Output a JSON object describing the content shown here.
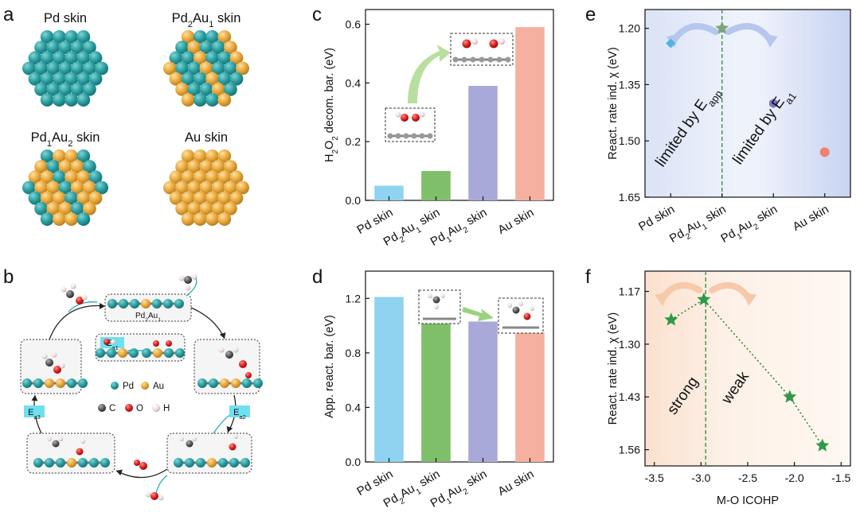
{
  "panel_labels": {
    "a": "a",
    "b": "b",
    "c": "c",
    "d": "d",
    "e": "e",
    "f": "f"
  },
  "panel_a": {
    "captions": [
      {
        "base": "Pd skin",
        "sub1": "",
        "mid": "",
        "sub2": "",
        "tail": ""
      },
      {
        "base": "Pd",
        "sub1": "2",
        "mid": "Au",
        "sub2": "1",
        "tail": " skin"
      },
      {
        "base": "Pd",
        "sub1": "1",
        "mid": "Au",
        "sub2": "2",
        "tail": " skin"
      },
      {
        "base": "Au skin",
        "sub1": "",
        "mid": "",
        "sub2": "",
        "tail": ""
      }
    ],
    "colors": {
      "pd": "#2a9d9f",
      "au": "#e8a73a"
    }
  },
  "panel_b": {
    "center_label": "Pd",
    "center_label_sub": "2",
    "center_label_tail": "Au",
    "center_label_sub2": "1",
    "ea1": "E",
    "ea1_sub": "a1",
    "ea2": "E",
    "ea2_sub": "a2",
    "ea3": "E",
    "ea3_sub": "a3",
    "legend": {
      "pd": "Pd",
      "au": "Au",
      "c": "C",
      "o": "O",
      "h": "H"
    }
  },
  "chart_data": [
    {
      "id": "c",
      "type": "bar",
      "categories": [
        "Pd skin",
        "Pd2Au1 skin",
        "Pd1Au2 skin",
        "Au skin"
      ],
      "values": [
        0.05,
        0.1,
        0.39,
        0.59
      ],
      "colors": [
        "#8fd3f0",
        "#7fbf6a",
        "#a9a9d9",
        "#f5b0a0"
      ],
      "ylabel": "H2O2 decom. bar. (eV)",
      "ylim": [
        0,
        0.65
      ],
      "yticks": [
        "0.0",
        "0.2",
        "0.4",
        "0.6"
      ]
    },
    {
      "id": "d",
      "type": "bar",
      "categories": [
        "Pd skin",
        "Pd2Au1 skin",
        "Pd1Au2 skin",
        "Au skin"
      ],
      "values": [
        1.21,
        1.11,
        1.03,
        0.95
      ],
      "colors": [
        "#8fd3f0",
        "#7fbf6a",
        "#a9a9d9",
        "#f5b0a0"
      ],
      "ylabel": "App. react. bar. (eV)",
      "ylim": [
        0,
        1.4
      ],
      "yticks": [
        "0.0",
        "0.4",
        "0.8",
        "1.2"
      ]
    },
    {
      "id": "e",
      "type": "scatter",
      "categories": [
        "Pd skin",
        "Pd2Au1 skin",
        "Pd1Au2 skin",
        "Au skin"
      ],
      "values": [
        1.24,
        1.2,
        1.4,
        1.53
      ],
      "markers": [
        "diamond",
        "star",
        "hexagon",
        "circle"
      ],
      "marker_colors": [
        "#4fb3e8",
        "#7aa67a",
        "#7b73c4",
        "#f08070"
      ],
      "ylabel": "React. rate ind. χ (eV)",
      "ylim": [
        1.65,
        1.15
      ],
      "yticks": [
        "1.20",
        "1.35",
        "1.50",
        "1.65"
      ],
      "annotations": {
        "left": "limited by E",
        "left_sub": "app",
        "right": "limited by E",
        "right_sub": "a1"
      },
      "divider_x": "Pd2Au1 skin"
    },
    {
      "id": "f",
      "type": "scatter",
      "x": [
        -3.32,
        -2.97,
        -2.05,
        -1.7
      ],
      "y": [
        1.24,
        1.19,
        1.43,
        1.55
      ],
      "marker": "star",
      "color": "#2e9a48",
      "xlabel": "M-O ICOHP",
      "ylabel": "React. rate ind. χ (eV)",
      "xlim": [
        -3.6,
        -1.4
      ],
      "ylim": [
        1.6,
        1.12
      ],
      "xticks": [
        "-3.5",
        "-3.0",
        "-2.5",
        "-2.0",
        "-1.5"
      ],
      "yticks": [
        "1.17",
        "1.30",
        "1.43",
        "1.56"
      ],
      "annotations": {
        "left": "strong",
        "right": "weak"
      },
      "divider_x": -2.95
    }
  ]
}
